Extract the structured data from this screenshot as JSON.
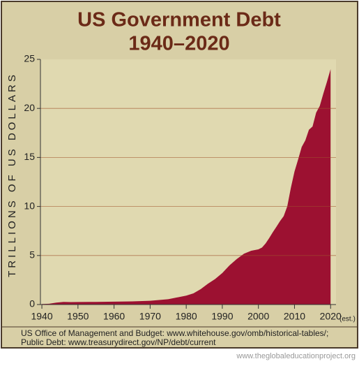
{
  "chart_data": {
    "type": "area",
    "title": "US Government Debt",
    "subtitle": "1940–2020",
    "y_label": "TRILLIONS OF US DOLLARS",
    "annotation": "(est.)",
    "source": [
      "US Office of Management and Budget: www.whitehouse.gov/omb/historical-tables/;",
      "Public Debt: www.treasurydirect.gov/NP/debt/current"
    ],
    "watermark": "www.theglobaleducationproject.org",
    "color": "#9c1131",
    "grid": true,
    "x": [
      1940,
      1942,
      1944,
      1946,
      1948,
      1950,
      1955,
      1960,
      1965,
      1970,
      1975,
      1980,
      1982,
      1984,
      1986,
      1988,
      1990,
      1992,
      1994,
      1996,
      1998,
      2000,
      2001,
      2002,
      2003,
      2004,
      2005,
      2006,
      2007,
      2008,
      2009,
      2010,
      2011,
      2012,
      2013,
      2014,
      2015,
      2016,
      2017,
      2018,
      2019,
      2020
    ],
    "values": [
      0.05,
      0.08,
      0.2,
      0.27,
      0.25,
      0.26,
      0.27,
      0.29,
      0.32,
      0.38,
      0.54,
      0.91,
      1.14,
      1.57,
      2.12,
      2.6,
      3.21,
      4.0,
      4.64,
      5.18,
      5.48,
      5.63,
      5.81,
      6.23,
      6.78,
      7.38,
      7.93,
      8.51,
      9.01,
      10.02,
      11.91,
      13.56,
      14.79,
      16.07,
      16.74,
      17.82,
      18.15,
      19.57,
      20.25,
      21.52,
      22.72,
      24.0
    ],
    "xlim": [
      1939.6,
      2021.5
    ],
    "xticks": [
      1940,
      1950,
      1960,
      1970,
      1980,
      1990,
      2000,
      2010,
      2020
    ],
    "ylim": [
      0,
      25
    ],
    "yticks": [
      0,
      5,
      10,
      15,
      20,
      25
    ]
  }
}
